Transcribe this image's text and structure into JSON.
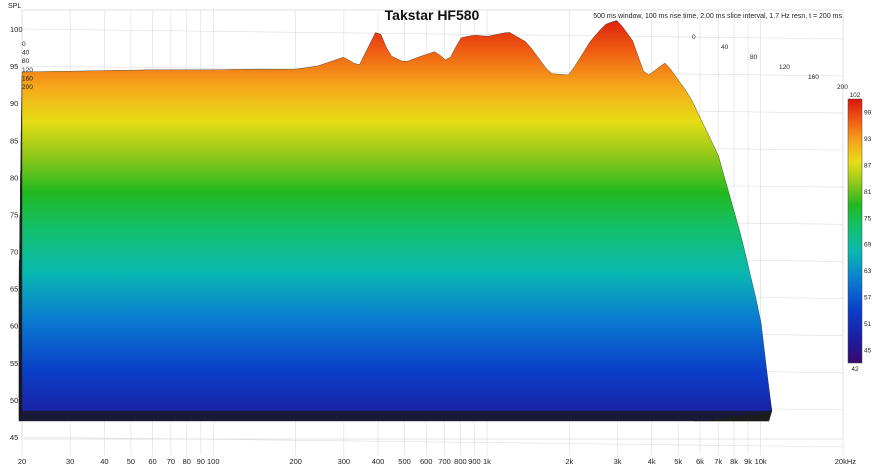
{
  "chart_data": {
    "type": "waterfall",
    "title": "Takstar HF580",
    "subtitle": "500 ms window, 100 ms rise time, 2.00 ms slice interval, 1.7 Hz resn, t = 200 ms",
    "ylabel": "SPL",
    "ylim": [
      45,
      100
    ],
    "y_ticks": [
      100,
      95,
      90,
      85,
      80,
      75,
      70,
      65,
      60,
      55,
      50,
      45
    ],
    "x_scale": "log",
    "xlim": [
      20,
      20000
    ],
    "x_ticks": [
      {
        "value": 20,
        "label": "20"
      },
      {
        "value": 30,
        "label": "30"
      },
      {
        "value": 40,
        "label": "40"
      },
      {
        "value": 50,
        "label": "50"
      },
      {
        "value": 60,
        "label": "60"
      },
      {
        "value": 70,
        "label": "70"
      },
      {
        "value": 80,
        "label": "80"
      },
      {
        "value": 90,
        "label": "90"
      },
      {
        "value": 100,
        "label": "100"
      },
      {
        "value": 200,
        "label": "200"
      },
      {
        "value": 300,
        "label": "300"
      },
      {
        "value": 400,
        "label": "400"
      },
      {
        "value": 500,
        "label": "500"
      },
      {
        "value": 600,
        "label": "600"
      },
      {
        "value": 700,
        "label": "700"
      },
      {
        "value": 800,
        "label": "800"
      },
      {
        "value": 900,
        "label": "900"
      },
      {
        "value": 1000,
        "label": "1k"
      },
      {
        "value": 2000,
        "label": "2k"
      },
      {
        "value": 3000,
        "label": "3k"
      },
      {
        "value": 4000,
        "label": "4k"
      },
      {
        "value": 5000,
        "label": "5k"
      },
      {
        "value": 6000,
        "label": "6k"
      },
      {
        "value": 7000,
        "label": "7k"
      },
      {
        "value": 8000,
        "label": "8k"
      },
      {
        "value": 9000,
        "label": "9k"
      },
      {
        "value": 10000,
        "label": "10k"
      },
      {
        "value": 20000,
        "label": "20kHz"
      }
    ],
    "time_axis_ms": {
      "range": [
        0,
        200
      ],
      "ticks": [
        "0",
        "40",
        "80",
        "120",
        "160",
        "200"
      ]
    },
    "colorbar": {
      "min": 42,
      "max": 102,
      "ticks": [
        102,
        99,
        93,
        87,
        81,
        75,
        69,
        63,
        57,
        51,
        45,
        42
      ]
    },
    "initial_response": [
      {
        "f": 20,
        "spl": 94.2
      },
      {
        "f": 40,
        "spl": 94.4
      },
      {
        "f": 60,
        "spl": 94.5
      },
      {
        "f": 100,
        "spl": 94.5
      },
      {
        "f": 150,
        "spl": 94.6
      },
      {
        "f": 200,
        "spl": 94.6
      },
      {
        "f": 240,
        "spl": 95.0
      },
      {
        "f": 300,
        "spl": 96.2
      },
      {
        "f": 340,
        "spl": 95.0
      },
      {
        "f": 400,
        "spl": 100.2
      },
      {
        "f": 440,
        "spl": 96.5
      },
      {
        "f": 500,
        "spl": 95.5
      },
      {
        "f": 560,
        "spl": 96.2
      },
      {
        "f": 650,
        "spl": 97.0
      },
      {
        "f": 720,
        "spl": 95.5
      },
      {
        "f": 800,
        "spl": 98.8
      },
      {
        "f": 900,
        "spl": 99.2
      },
      {
        "f": 1000,
        "spl": 99.0
      },
      {
        "f": 1200,
        "spl": 99.6
      },
      {
        "f": 1400,
        "spl": 98.2
      },
      {
        "f": 1700,
        "spl": 94.0
      },
      {
        "f": 2000,
        "spl": 93.8
      },
      {
        "f": 2400,
        "spl": 98.5
      },
      {
        "f": 2700,
        "spl": 100.6
      },
      {
        "f": 3000,
        "spl": 101.2
      },
      {
        "f": 3400,
        "spl": 98.5
      },
      {
        "f": 3800,
        "spl": 93.5
      },
      {
        "f": 4500,
        "spl": 95.5
      },
      {
        "f": 5500,
        "spl": 91.0
      },
      {
        "f": 7000,
        "spl": 83.0
      },
      {
        "f": 8500,
        "spl": 72.0
      },
      {
        "f": 10000,
        "spl": 61.0
      },
      {
        "f": 11000,
        "spl": 48.0
      }
    ],
    "floor_spl": 48.5
  }
}
